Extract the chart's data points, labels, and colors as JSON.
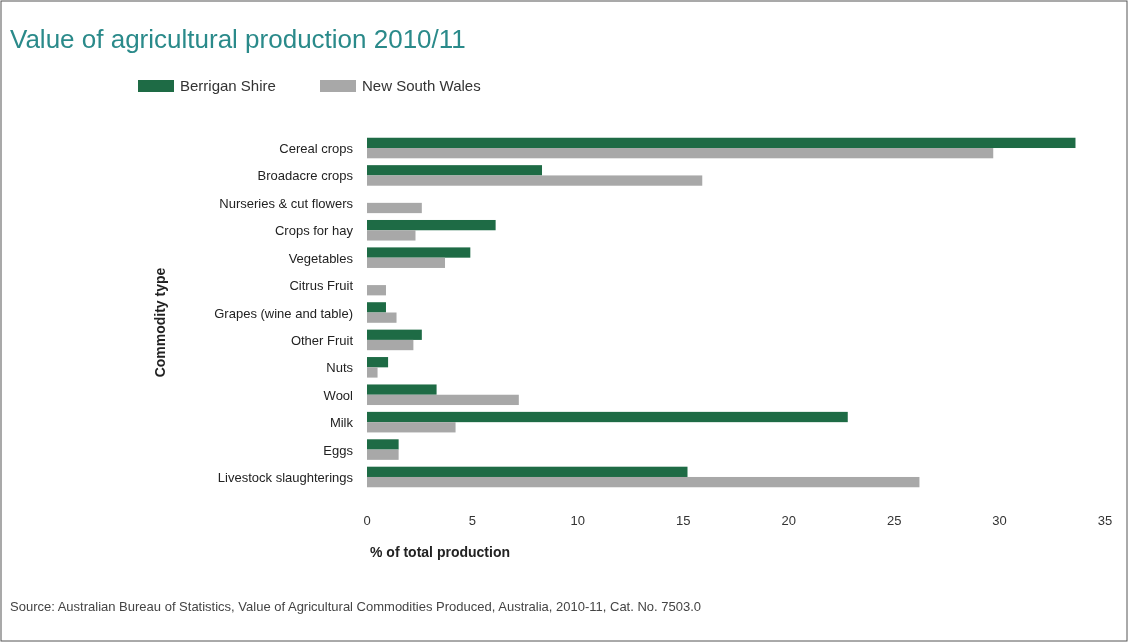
{
  "chart_data": {
    "type": "bar",
    "orientation": "horizontal",
    "title": "Value of agricultural production 2010/11",
    "xlabel": "% of total production",
    "ylabel": "Commodity type",
    "categories": [
      "Cereal crops",
      "Broadacre crops",
      "Nurseries & cut flowers",
      "Crops for hay",
      "Vegetables",
      "Citrus Fruit",
      "Grapes (wine and table)",
      "Other Fruit",
      "Nuts",
      "Wool",
      "Milk",
      "Eggs",
      "Livestock slaughterings"
    ],
    "series": [
      {
        "name": "Berrigan Shire",
        "color": "#1e6b45",
        "values": [
          33.6,
          8.3,
          null,
          6.1,
          4.9,
          null,
          0.9,
          2.6,
          1.0,
          3.3,
          22.8,
          1.5,
          15.2
        ]
      },
      {
        "name": "New South Wales",
        "color": "#a8a8a8",
        "values": [
          29.7,
          15.9,
          2.6,
          2.3,
          3.7,
          0.9,
          1.4,
          2.2,
          0.5,
          7.2,
          4.2,
          1.5,
          26.2
        ]
      }
    ],
    "xlim": [
      0,
      35
    ],
    "xticks": [
      0,
      5,
      10,
      15,
      20,
      25,
      30,
      35
    ],
    "legend": "top left",
    "grid": false,
    "annotations": [
      "Source: Australian Bureau of Statistics, Value of Agricultural Commodities Produced, Australia, 2010-11, Cat. No. 7503.0"
    ]
  }
}
